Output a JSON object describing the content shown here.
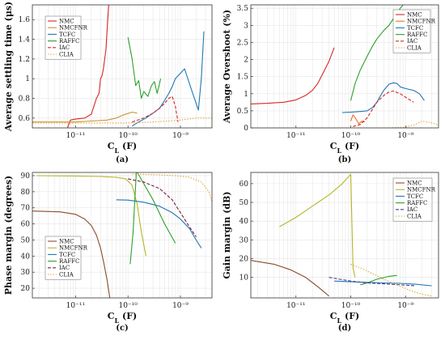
{
  "chart_data": [
    {
      "type": "line",
      "caption": "(a)",
      "xlabel": "C_L (F)",
      "ylabel": "Average settling time (μs)",
      "xscale": "log",
      "xlim": [
        1.5e-12,
        4e-09
      ],
      "ylim": [
        0.5,
        1.75
      ],
      "xticks": [
        1e-11,
        1e-10,
        1e-09
      ],
      "xtick_labels": [
        "10⁻¹¹",
        "10⁻¹⁰",
        "10⁻⁹"
      ],
      "yticks": [
        0.6,
        0.8,
        1,
        1.2,
        1.4,
        1.6
      ],
      "ytick_labels": [
        "0.6",
        "0.8",
        "1",
        "1.2",
        "1.4",
        "1.6"
      ],
      "grid": true,
      "legend": "top-left",
      "series": [
        {
          "name": "NMC",
          "color": "#d62728",
          "dash": "",
          "x": [
            7e-12,
            8e-12,
            1e-11,
            1.5e-11,
            2e-11,
            2.5e-11,
            2.8e-11,
            3e-11,
            3.2e-11,
            3.4e-11,
            3.6e-11,
            3.8e-11,
            4e-11,
            4.3e-11
          ],
          "y": [
            0.5,
            0.58,
            0.59,
            0.6,
            0.64,
            0.8,
            0.85,
            1.0,
            1.03,
            1.1,
            1.2,
            1.3,
            1.5,
            1.75
          ]
        },
        {
          "name": "NMCFNR",
          "color": "#c8952e",
          "dash": "",
          "x": [
            1.5e-12,
            1e-11,
            2e-11,
            4e-11,
            6e-11,
            8e-11,
            1.2e-10,
            1.5e-10
          ],
          "y": [
            0.56,
            0.56,
            0.57,
            0.58,
            0.6,
            0.63,
            0.66,
            0.65
          ]
        },
        {
          "name": "TCFC",
          "color": "#1f77b4",
          "dash": "",
          "x": [
            1.2e-10,
            1.6e-10,
            2.2e-10,
            3e-10,
            4e-10,
            5e-10,
            6e-10,
            7e-10,
            8e-10,
            1.2e-09,
            1.6e-09,
            2.2e-09,
            2.5e-09,
            2.8e-09
          ],
          "y": [
            0.52,
            0.56,
            0.6,
            0.65,
            0.7,
            0.78,
            0.85,
            0.92,
            1.0,
            1.1,
            0.9,
            0.68,
            1.0,
            1.48
          ]
        },
        {
          "name": "RAFFC",
          "color": "#2ca02c",
          "dash": "",
          "x": [
            1e-10,
            1.2e-10,
            1.4e-10,
            1.6e-10,
            1.8e-10,
            2e-10,
            2.4e-10,
            2.8e-10,
            3.2e-10,
            3.6e-10,
            4.2e-10
          ],
          "y": [
            1.42,
            1.2,
            0.93,
            0.98,
            0.8,
            0.87,
            0.82,
            0.93,
            0.97,
            0.85,
            1.0
          ]
        },
        {
          "name": "IAC",
          "color": "#d62728",
          "dash": "4,2",
          "x": [
            1.2e-10,
            2e-10,
            3e-10,
            4e-10,
            5e-10,
            6e-10,
            7e-10,
            8e-10,
            9e-10
          ],
          "y": [
            0.56,
            0.6,
            0.65,
            0.7,
            0.75,
            0.8,
            0.82,
            0.72,
            0.56
          ]
        },
        {
          "name": "CLIA",
          "color": "#e8a33d",
          "dash": "1.5,1.8",
          "x": [
            1.5e-12,
            1e-10,
            3e-10,
            6e-10,
            1e-09,
            2e-09,
            4e-09
          ],
          "y": [
            0.55,
            0.55,
            0.56,
            0.57,
            0.58,
            0.6,
            0.6
          ]
        }
      ]
    },
    {
      "type": "line",
      "caption": "(b)",
      "xlabel": "C_L (F)",
      "ylabel": "Average Overshoot (%)",
      "xscale": "log",
      "xlim": [
        1.5e-12,
        4e-09
      ],
      "ylim": [
        0,
        3.6
      ],
      "xticks": [
        1e-11,
        1e-10,
        1e-09
      ],
      "xtick_labels": [
        "10⁻¹¹",
        "10⁻¹⁰",
        "10⁻⁹"
      ],
      "yticks": [
        0,
        0.5,
        1,
        1.5,
        2,
        2.5,
        3,
        3.5
      ],
      "ytick_labels": [
        "0",
        "0.5",
        "1",
        "1.5",
        "2",
        "2.5",
        "3",
        "3.5"
      ],
      "grid": true,
      "legend": "top-right",
      "series": [
        {
          "name": "NMC",
          "color": "#d62728",
          "dash": "",
          "x": [
            1.5e-12,
            3e-12,
            6e-12,
            1e-11,
            1.5e-11,
            2e-11,
            2.5e-11,
            3e-11,
            4e-11,
            5e-11
          ],
          "y": [
            0.7,
            0.72,
            0.75,
            0.82,
            0.95,
            1.1,
            1.3,
            1.55,
            1.95,
            2.35
          ]
        },
        {
          "name": "NMCFNR",
          "color": "#e8731e",
          "dash": "",
          "x": [
            1e-10,
            1.1e-10,
            1.2e-10,
            1.4e-10,
            1.6e-10,
            1.8e-10
          ],
          "y": [
            0.2,
            0.38,
            0.3,
            0.12,
            0.2,
            0.17
          ]
        },
        {
          "name": "TCFC",
          "color": "#1f77b4",
          "dash": "",
          "x": [
            7e-11,
            1e-10,
            1.5e-10,
            2e-10,
            2.5e-10,
            3e-10,
            3.5e-10,
            4e-10,
            5e-10,
            6e-10,
            7e-10,
            8e-10,
            1e-09,
            1.4e-09,
            1.8e-09,
            2.2e-09
          ],
          "y": [
            0.45,
            0.46,
            0.48,
            0.5,
            0.6,
            0.75,
            0.95,
            1.1,
            1.28,
            1.32,
            1.3,
            1.2,
            1.15,
            1.1,
            1.0,
            0.8
          ]
        },
        {
          "name": "RAFFC",
          "color": "#2ca02c",
          "dash": "",
          "x": [
            1e-10,
            1.2e-10,
            1.5e-10,
            2e-10,
            2.5e-10,
            3e-10,
            4e-10,
            5e-10,
            6e-10,
            7e-10,
            8e-10,
            9e-10
          ],
          "y": [
            0.8,
            1.3,
            1.7,
            2.1,
            2.4,
            2.6,
            2.85,
            3.0,
            3.2,
            3.35,
            3.5,
            3.6
          ]
        },
        {
          "name": "IAC",
          "color": "#d62728",
          "dash": "4,2",
          "x": [
            1.1e-10,
            1.5e-10,
            2e-10,
            2.5e-10,
            3e-10,
            4e-10,
            5e-10,
            6e-10,
            8e-10,
            1e-09,
            1.4e-09
          ],
          "y": [
            0.04,
            0.1,
            0.3,
            0.55,
            0.75,
            0.95,
            1.05,
            1.08,
            1.0,
            0.9,
            0.75
          ]
        },
        {
          "name": "CLIA",
          "color": "#e8a33d",
          "dash": "1.5,1.8",
          "x": [
            1.5e-12,
            1e-10,
            5e-10,
            1e-09,
            1.5e-09,
            2e-09,
            3e-09,
            4e-09
          ],
          "y": [
            0,
            0,
            0,
            0.02,
            0.1,
            0.2,
            0.15,
            0.08
          ]
        }
      ]
    },
    {
      "type": "line",
      "caption": "(c)",
      "xlabel": "C_L (F)",
      "ylabel": "Phase margin (degrees)",
      "xscale": "log",
      "xlim": [
        1.5e-12,
        4e-09
      ],
      "ylim": [
        14,
        92
      ],
      "xticks": [
        1e-11,
        1e-10,
        1e-09
      ],
      "xtick_labels": [
        "10⁻¹¹",
        "10⁻¹⁰",
        "10⁻⁹"
      ],
      "yticks": [
        20,
        30,
        40,
        50,
        60,
        70,
        80,
        90
      ],
      "ytick_labels": [
        "20",
        "30",
        "40",
        "50",
        "60",
        "70",
        "80",
        "90"
      ],
      "grid": true,
      "legend": "bottom-left",
      "series": [
        {
          "name": "NMC",
          "color": "#8c4a2f",
          "dash": "",
          "x": [
            1.5e-12,
            5e-12,
            1e-11,
            1.5e-11,
            2e-11,
            2.5e-11,
            3e-11,
            3.5e-11,
            4e-11,
            4.5e-11
          ],
          "y": [
            68,
            67.5,
            66,
            63,
            59,
            53,
            45,
            35,
            25,
            14
          ]
        },
        {
          "name": "NMCFNR",
          "color": "#b5b52a",
          "dash": "",
          "x": [
            1.8e-12,
            1e-11,
            3e-11,
            6e-11,
            9e-11,
            1.2e-10,
            1.5e-10,
            1.8e-10,
            2.2e-10
          ],
          "y": [
            90,
            89.8,
            89.5,
            89,
            88,
            84,
            72,
            55,
            40
          ]
        },
        {
          "name": "TCFC",
          "color": "#1f77b4",
          "dash": "",
          "x": [
            6e-11,
            1e-10,
            2e-10,
            4e-10,
            7e-10,
            1e-09,
            1.5e-09,
            2e-09,
            2.5e-09
          ],
          "y": [
            75,
            74.8,
            73.5,
            71,
            67,
            63,
            57,
            50,
            45
          ]
        },
        {
          "name": "RAFFC",
          "color": "#2ca02c",
          "dash": "",
          "x": [
            1.1e-10,
            1.25e-10,
            1.45e-10,
            2e-10,
            3e-10,
            5e-10,
            8e-10
          ],
          "y": [
            35,
            55,
            93,
            85,
            75,
            60,
            48
          ]
        },
        {
          "name": "IAC",
          "color": "#7a2040",
          "dash": "4,2",
          "x": [
            1e-10,
            2e-10,
            4e-10,
            7e-10,
            1e-09,
            1.5e-09,
            2e-09
          ],
          "y": [
            88,
            86,
            82,
            75,
            67,
            58,
            52
          ]
        },
        {
          "name": "CLIA",
          "color": "#e8a33d",
          "dash": "1.5,1.8",
          "x": [
            1.2e-10,
            4e-10,
            8e-10,
            1.5e-09,
            2.5e-09,
            3.5e-09,
            4e-09
          ],
          "y": [
            91,
            90.5,
            90,
            89,
            86,
            80,
            74
          ]
        }
      ]
    },
    {
      "type": "line",
      "caption": "(d)",
      "xlabel": "C_L (F)",
      "ylabel": "Gain margin (dB)",
      "xscale": "log",
      "xlim": [
        1.5e-12,
        4e-09
      ],
      "ylim": [
        -1,
        66
      ],
      "xticks": [
        1e-11,
        1e-10,
        1e-09
      ],
      "xtick_labels": [
        "10⁻¹¹",
        "10⁻¹⁰",
        "10⁻⁹"
      ],
      "yticks": [
        10,
        20,
        30,
        40,
        50,
        60
      ],
      "ytick_labels": [
        "10",
        "20",
        "30",
        "40",
        "50",
        "60"
      ],
      "grid": true,
      "legend": "top-right",
      "series": [
        {
          "name": "NMC",
          "color": "#8c4a2f",
          "dash": "",
          "x": [
            1.5e-12,
            4e-12,
            8e-12,
            1.5e-11,
            2.5e-11,
            4e-11
          ],
          "y": [
            19,
            17,
            14,
            10,
            5,
            0
          ]
        },
        {
          "name": "NMCFNR",
          "color": "#b5b52a",
          "dash": "",
          "x": [
            5e-12,
            1e-11,
            2e-11,
            4e-11,
            7e-11,
            1e-10,
            1.05e-10,
            1.1e-10,
            1.2e-10
          ],
          "y": [
            37,
            42,
            48,
            54,
            60,
            65,
            40,
            15,
            10
          ]
        },
        {
          "name": "TCFC",
          "color": "#1f77b4",
          "dash": "",
          "x": [
            5e-11,
            1e-10,
            2e-10,
            4e-10,
            8e-10,
            1.5e-09,
            3e-09
          ],
          "y": [
            8,
            7.6,
            7.3,
            7,
            6.8,
            6.3,
            5.5
          ]
        },
        {
          "name": "RAFFC",
          "color": "#2ca02c",
          "dash": "",
          "x": [
            1.5e-10,
            2e-10,
            3e-10,
            5e-10,
            7e-10
          ],
          "y": [
            6,
            7,
            9,
            10.5,
            11
          ]
        },
        {
          "name": "IAC",
          "color": "#4a3a8c",
          "dash": "4,2",
          "x": [
            4e-11,
            1e-10,
            2e-10,
            4e-10,
            8e-10,
            1.5e-09
          ],
          "y": [
            10,
            8,
            7,
            6.5,
            6,
            5.5
          ]
        },
        {
          "name": "CLIA",
          "color": "#d8b020",
          "dash": "1.5,1.8",
          "x": [
            1e-10,
            1.5e-10,
            2.5e-10,
            4e-10,
            7e-10,
            1.2e-09,
            2e-09,
            3e-09
          ],
          "y": [
            17,
            15,
            12,
            9,
            6,
            3,
            1,
            0
          ]
        }
      ]
    }
  ]
}
